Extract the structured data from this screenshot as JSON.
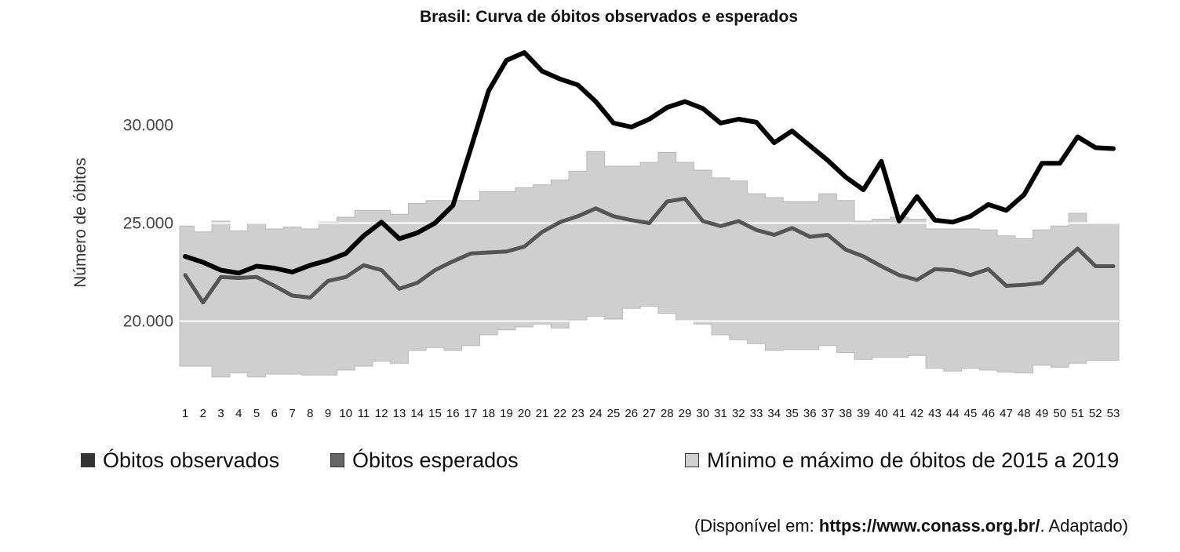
{
  "chart_data": {
    "type": "line",
    "title": "Brasil: Curva de óbitos observados e esperados",
    "xlabel": "",
    "ylabel": "Número de óbitos",
    "ylim": [
      16500,
      34500
    ],
    "yticks": [
      "20.000",
      "25.000",
      "30.000"
    ],
    "ytick_values": [
      20000,
      25000,
      30000
    ],
    "grid": true,
    "legend_position": "bottom",
    "x": [
      1,
      2,
      3,
      4,
      5,
      6,
      7,
      8,
      9,
      10,
      11,
      12,
      13,
      14,
      15,
      16,
      17,
      18,
      19,
      20,
      21,
      22,
      23,
      24,
      25,
      26,
      27,
      28,
      29,
      30,
      31,
      32,
      33,
      34,
      35,
      36,
      37,
      38,
      39,
      40,
      41,
      42,
      43,
      44,
      45,
      46,
      47,
      48,
      49,
      50,
      51,
      52,
      53
    ],
    "series": [
      {
        "name": "Óbitos observados",
        "color": "#000000",
        "values": [
          23300,
          23000,
          22600,
          22450,
          22800,
          22700,
          22500,
          22850,
          23100,
          23450,
          24350,
          25050,
          24200,
          24500,
          25000,
          25900,
          28800,
          31750,
          33300,
          33700,
          32750,
          32350,
          32050,
          31200,
          30100,
          29900,
          30300,
          30900,
          31200,
          30850,
          30100,
          30300,
          30150,
          29100,
          29700,
          28950,
          28200,
          27350,
          26700,
          28150,
          25100,
          26350,
          25150,
          25050,
          25350,
          25950,
          25650,
          26450,
          28050,
          28050,
          29400,
          28850,
          28800
        ]
      },
      {
        "name": "Óbitos esperados",
        "color": "#555555",
        "values": [
          22350,
          20950,
          22250,
          22200,
          22250,
          21800,
          21300,
          21200,
          22050,
          22250,
          22850,
          22600,
          21650,
          21950,
          22600,
          23050,
          23450,
          23500,
          23550,
          23800,
          24550,
          25050,
          25350,
          25750,
          25350,
          25150,
          25000,
          26100,
          26250,
          25100,
          24850,
          25100,
          24650,
          24400,
          24750,
          24300,
          24400,
          23650,
          23300,
          22800,
          22350,
          22100,
          22650,
          22600,
          22350,
          22650,
          21800,
          21850,
          21950,
          22900,
          23700,
          22800,
          22800
        ]
      },
      {
        "name": "Mínimo e máximo de óbitos de 2015 a 2019",
        "color": "#cfcfcf",
        "type": "area",
        "min": [
          17700,
          17700,
          17150,
          17350,
          17150,
          17300,
          17300,
          17250,
          17250,
          17500,
          17700,
          17950,
          17850,
          18500,
          18650,
          18500,
          18750,
          19300,
          19550,
          19700,
          19850,
          19650,
          20050,
          20250,
          20100,
          20650,
          20750,
          20400,
          20000,
          19850,
          19300,
          19050,
          18850,
          18500,
          18550,
          18550,
          18750,
          18400,
          18050,
          18150,
          18150,
          18250,
          17600,
          17450,
          17600,
          17500,
          17400,
          17350,
          17750,
          17650,
          17850,
          18000,
          18000
        ],
        "max": [
          24850,
          24550,
          25100,
          24600,
          25000,
          24700,
          24800,
          24700,
          25050,
          25300,
          25650,
          25650,
          25450,
          26000,
          26150,
          26150,
          26150,
          26600,
          26600,
          26800,
          26950,
          27200,
          27650,
          28650,
          27900,
          27900,
          28100,
          28600,
          28100,
          27700,
          27300,
          27150,
          26500,
          26300,
          26100,
          26100,
          26500,
          26150,
          25100,
          25200,
          25300,
          25200,
          24700,
          24700,
          24700,
          24650,
          24350,
          24200,
          24650,
          24850,
          25500,
          25000,
          25000
        ]
      }
    ]
  },
  "legend": [
    {
      "label": "Óbitos observados",
      "color": "#333333"
    },
    {
      "label": "Óbitos esperados",
      "color": "#666666"
    },
    {
      "label": "Mínimo e máximo de óbitos de 2015 a 2019",
      "color": "#d0d0d0"
    }
  ],
  "source": {
    "prefix": "(Disponível em: ",
    "url": "https://www.conass.org.br/",
    "suffix": ". Adaptado)"
  }
}
